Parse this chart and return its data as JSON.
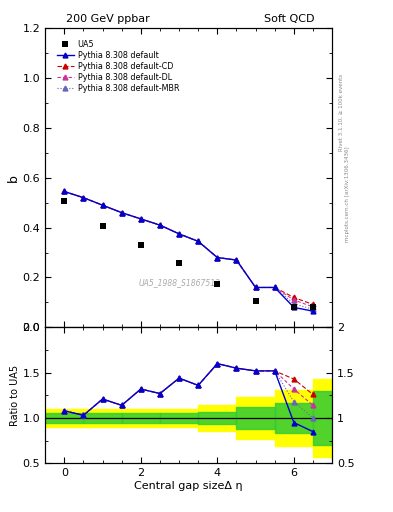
{
  "title_left": "200 GeV ppbar",
  "title_right": "Soft QCD",
  "ylabel_main": "b",
  "ylabel_ratio": "Ratio to UA5",
  "xlabel": "Central gap sizeΔ η",
  "right_label_top": "Rivet 3.1.10, ≥ 100k events",
  "right_label_bottom": "mcplots.cern.ch [arXiv:1306.3436]",
  "watermark": "UA5_1988_S1867512",
  "ua5_x": [
    0.0,
    1.0,
    2.0,
    3.0,
    4.0,
    5.0,
    6.0,
    6.5
  ],
  "ua5_y": [
    0.505,
    0.405,
    0.33,
    0.26,
    0.175,
    0.105,
    0.08,
    0.08
  ],
  "pythia_x": [
    0.0,
    0.5,
    1.0,
    1.5,
    2.0,
    2.5,
    3.0,
    3.5,
    4.0,
    4.5,
    5.0,
    5.5,
    6.0,
    6.5
  ],
  "pythia_default_y": [
    0.545,
    0.52,
    0.49,
    0.46,
    0.435,
    0.41,
    0.375,
    0.345,
    0.28,
    0.27,
    0.16,
    0.16,
    0.08,
    0.065
  ],
  "pythia_cd_y": [
    0.545,
    0.52,
    0.49,
    0.46,
    0.435,
    0.41,
    0.375,
    0.345,
    0.28,
    0.27,
    0.16,
    0.16,
    0.12,
    0.092
  ],
  "pythia_dl_y": [
    0.545,
    0.52,
    0.49,
    0.46,
    0.435,
    0.41,
    0.375,
    0.345,
    0.28,
    0.27,
    0.16,
    0.16,
    0.11,
    0.082
  ],
  "pythia_mbr_y": [
    0.545,
    0.52,
    0.49,
    0.46,
    0.435,
    0.41,
    0.375,
    0.345,
    0.28,
    0.27,
    0.16,
    0.16,
    0.095,
    0.072
  ],
  "ratio_x": [
    0.0,
    0.5,
    1.0,
    1.5,
    2.0,
    2.5,
    3.0,
    3.5,
    4.0,
    4.5,
    5.0,
    5.5,
    6.0,
    6.5
  ],
  "ratio_default_y": [
    1.08,
    1.03,
    1.21,
    1.14,
    1.32,
    1.27,
    1.44,
    1.36,
    1.6,
    1.55,
    1.52,
    1.52,
    0.95,
    0.85
  ],
  "ratio_cd_y": [
    1.08,
    1.03,
    1.21,
    1.14,
    1.32,
    1.27,
    1.44,
    1.36,
    1.6,
    1.55,
    1.52,
    1.52,
    1.43,
    1.26
  ],
  "ratio_dl_y": [
    1.08,
    1.03,
    1.21,
    1.14,
    1.32,
    1.27,
    1.44,
    1.36,
    1.6,
    1.55,
    1.52,
    1.52,
    1.32,
    1.14
  ],
  "ratio_mbr_y": [
    1.08,
    1.03,
    1.21,
    1.14,
    1.32,
    1.27,
    1.44,
    1.36,
    1.6,
    1.55,
    1.52,
    1.52,
    1.18,
    1.0
  ],
  "band_edges": [
    -0.5,
    0.5,
    1.5,
    2.5,
    3.5,
    4.5,
    5.5,
    6.5,
    7.0
  ],
  "green_lo": [
    0.95,
    0.95,
    0.95,
    0.95,
    0.93,
    0.88,
    0.83,
    0.7
  ],
  "green_hi": [
    1.05,
    1.05,
    1.05,
    1.05,
    1.07,
    1.12,
    1.17,
    1.3
  ],
  "yellow_lo": [
    0.9,
    0.9,
    0.9,
    0.9,
    0.86,
    0.77,
    0.69,
    0.57
  ],
  "yellow_hi": [
    1.1,
    1.1,
    1.1,
    1.1,
    1.14,
    1.23,
    1.31,
    1.43
  ],
  "color_default": "#0000cc",
  "color_cd": "#cc0000",
  "color_dl": "#cc3399",
  "color_mbr": "#6666bb",
  "color_ua5": "#000000",
  "color_green": "#33cc33",
  "color_yellow": "#ffff00",
  "main_ylim": [
    0.0,
    1.2
  ],
  "ratio_ylim": [
    0.5,
    2.0
  ],
  "xlim": [
    -0.5,
    7.0
  ]
}
